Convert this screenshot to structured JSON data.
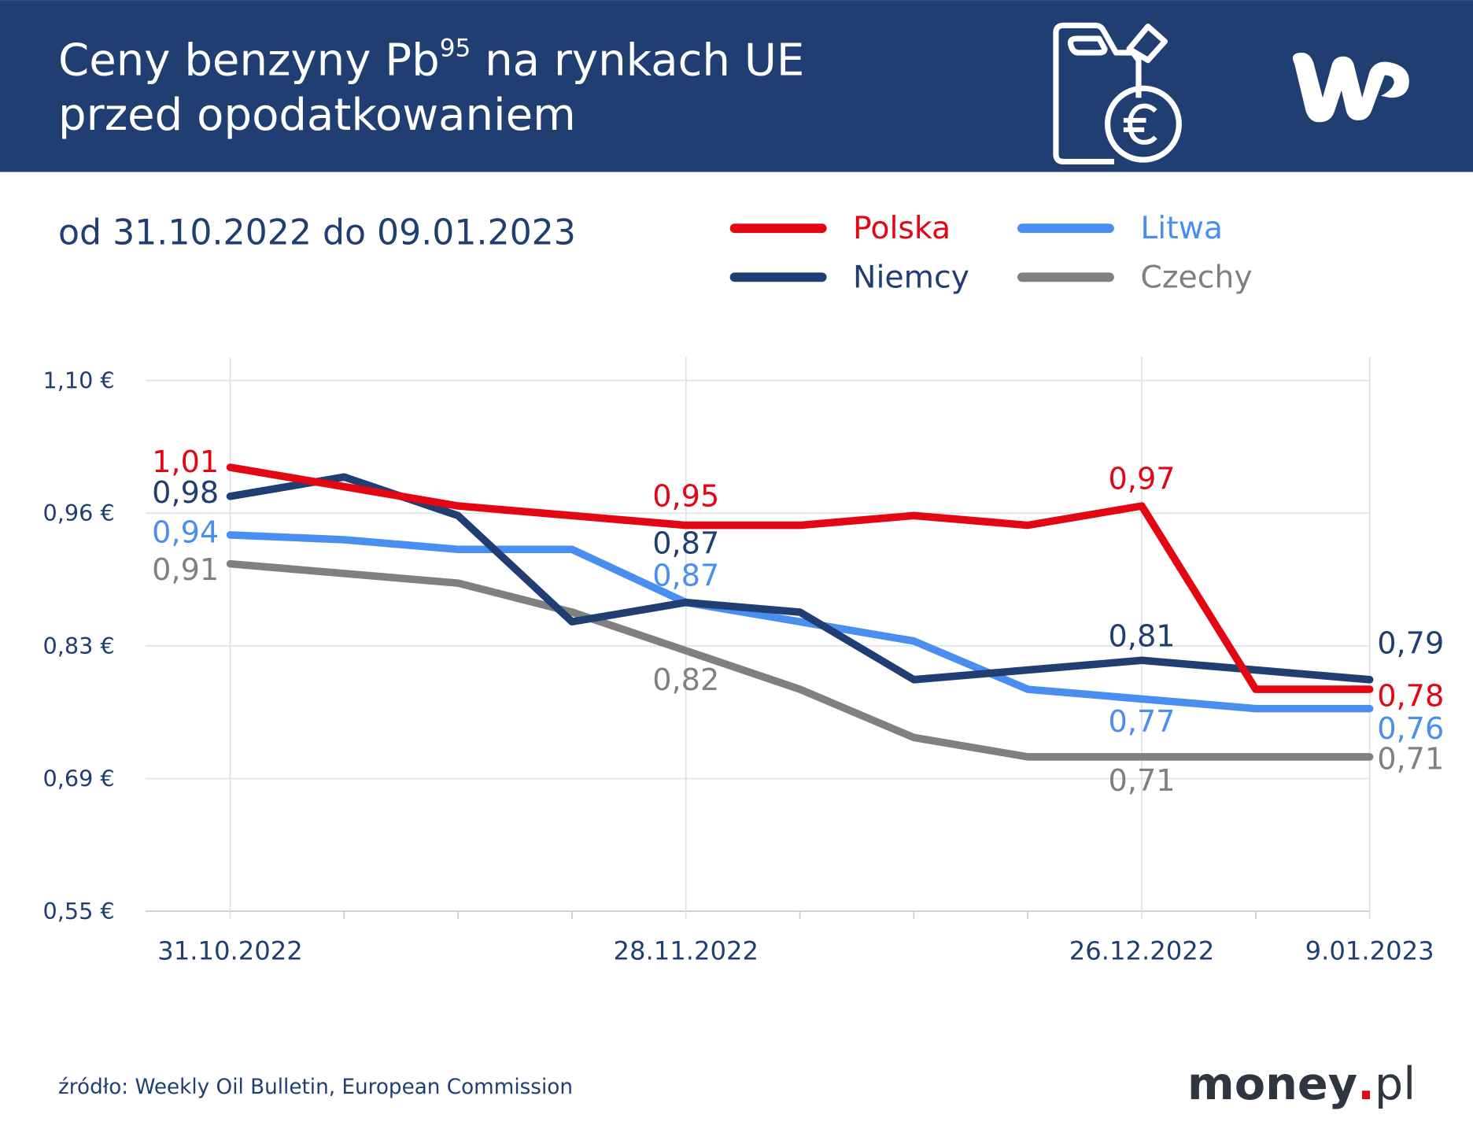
{
  "header": {
    "title_line1_a": "Ceny benzyny Pb",
    "title_line1_sup": "95",
    "title_line1_b": " na rynkach UE",
    "title_line2": "przed opodatkowaniem",
    "background": "#213e73",
    "icon": "fuel-canister-euro-icon",
    "logo_text": "WP"
  },
  "subtitle": "od 31.10.2022 do 09.01.2023",
  "footer": {
    "source": "źródło: Weekly Oil Bulletin, European Commission",
    "brand_a": "money",
    "brand_dot": ".",
    "brand_b": "pl"
  },
  "chart_data": {
    "type": "line",
    "title": "",
    "xlabel": "",
    "ylabel": "",
    "ylim": [
      0.55,
      1.1
    ],
    "y_ticks": [
      "1,10 €",
      "0,96 €",
      "0,83 €",
      "0,69 €",
      "0,55 €"
    ],
    "y_tick_values": [
      1.1,
      0.9625,
      0.825,
      0.6875,
      0.55
    ],
    "x": [
      "31.10.2022",
      "7.11.2022",
      "14.11.2022",
      "21.11.2022",
      "28.11.2022",
      "5.12.2022",
      "12.12.2022",
      "19.12.2022",
      "26.12.2022",
      "2.01.2023",
      "9.01.2023"
    ],
    "x_tick_labels": {
      "0": "31.10.2022",
      "4": "28.11.2022",
      "8": "26.12.2022",
      "10": "9.01.2023"
    },
    "grid": true,
    "legend_position": "top-right",
    "series": [
      {
        "name": "Polska",
        "color": "#e30613",
        "values": [
          1.01,
          0.99,
          0.97,
          0.96,
          0.95,
          0.95,
          0.96,
          0.95,
          0.97,
          0.78,
          0.78
        ],
        "labels": [
          [
            0,
            "1,01"
          ],
          [
            4,
            "0,95"
          ],
          [
            8,
            "0,97"
          ],
          [
            10,
            "0,78"
          ]
        ]
      },
      {
        "name": "Niemcy",
        "color": "#213e73",
        "values": [
          0.98,
          1.0,
          0.96,
          0.85,
          0.87,
          0.86,
          0.79,
          0.8,
          0.81,
          0.8,
          0.79
        ],
        "labels": [
          [
            0,
            "0,98"
          ],
          [
            4,
            "0,87"
          ],
          [
            8,
            "0,81"
          ],
          [
            10,
            "0,79"
          ]
        ]
      },
      {
        "name": "Litwa",
        "color": "#4a8ff0",
        "values": [
          0.94,
          0.935,
          0.925,
          0.925,
          0.87,
          0.85,
          0.83,
          0.78,
          0.77,
          0.76,
          0.76
        ],
        "labels": [
          [
            0,
            "0,94"
          ],
          [
            4,
            "0,87"
          ],
          [
            8,
            "0,77"
          ],
          [
            10,
            "0,76"
          ]
        ]
      },
      {
        "name": "Czechy",
        "color": "#808080",
        "values": [
          0.91,
          0.9,
          0.89,
          0.86,
          0.82,
          0.78,
          0.73,
          0.71,
          0.71,
          0.71,
          0.71
        ],
        "labels": [
          [
            0,
            "0,91"
          ],
          [
            4,
            "0,82"
          ],
          [
            8,
            "0,71"
          ],
          [
            10,
            "0,71"
          ]
        ]
      }
    ]
  }
}
